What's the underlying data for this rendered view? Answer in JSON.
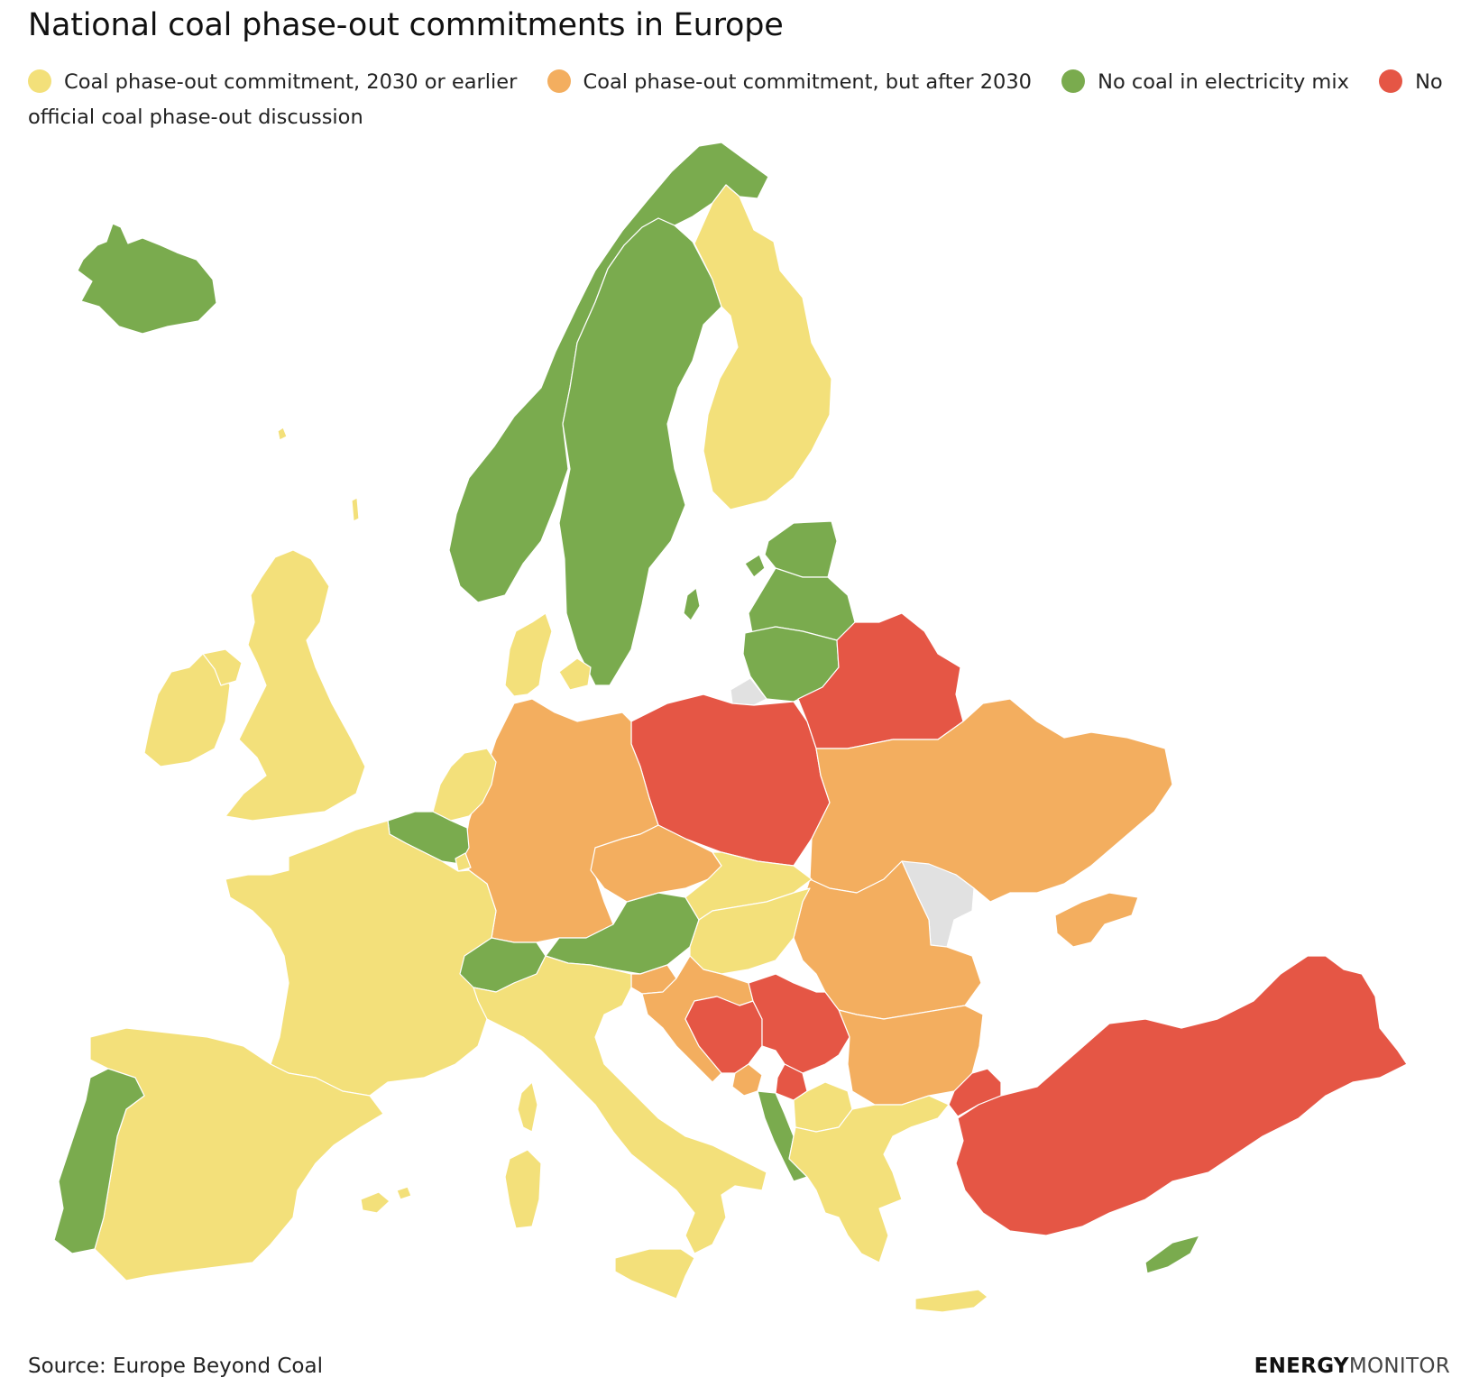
{
  "title": "National coal phase-out commitments in Europe",
  "legend": [
    {
      "label": "Coal phase-out commitment, 2030 or earlier",
      "color": "#f3e07a"
    },
    {
      "label": "Coal phase-out commitment, but after 2030",
      "color": "#f3ae5f"
    },
    {
      "label": "No coal in electricity mix",
      "color": "#7aab4e"
    },
    {
      "label": "No official coal phase-out discussion",
      "color": "#e55645"
    }
  ],
  "colors": {
    "yellow": "#f3e07a",
    "orange": "#f3ae5f",
    "green": "#7aab4e",
    "red": "#e55645",
    "nodata": "#e1e1e1"
  },
  "source": "Source: Europe Beyond Coal",
  "brand": {
    "part1": "ENERGY",
    "part2": "MONITOR"
  }
}
